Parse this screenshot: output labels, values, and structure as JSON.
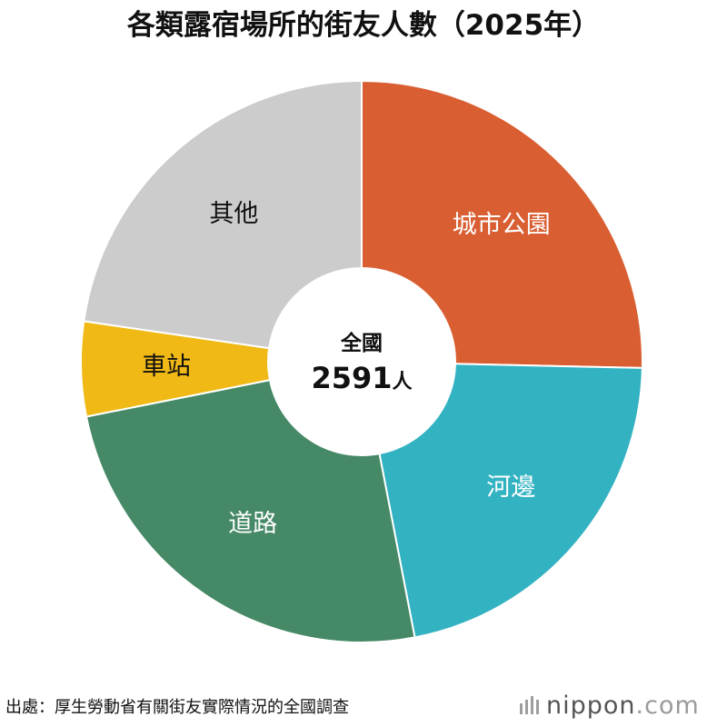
{
  "chart_data": {
    "type": "pie",
    "title": "各類露宿場所的街友人數（2025年）",
    "categories": [
      "城市公園",
      "河邊",
      "道路",
      "車站",
      "其他"
    ],
    "values": [
      657,
      560,
      645,
      141,
      588
    ],
    "unit": "人",
    "center": {
      "label": "全國",
      "total": "2591",
      "unit": "人"
    },
    "start_angle_deg": 90,
    "direction": "clockwise",
    "colors": [
      "#d95f33",
      "#33b2c2",
      "#468966",
      "#f0b915",
      "#cccccc"
    ],
    "label_colors": [
      "#ffffff",
      "#ffffff",
      "#ffffff",
      "#111111",
      "#111111"
    ]
  },
  "footer": {
    "source": "出處：厚生勞動省有關街友實際情況的全國調查",
    "logo_name": "nippon",
    "logo_domain": ".com"
  }
}
